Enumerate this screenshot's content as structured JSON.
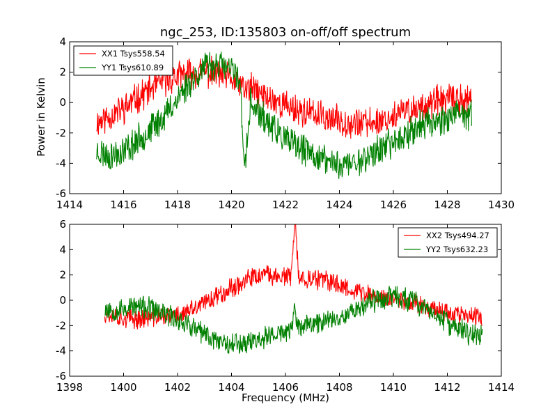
{
  "figure": {
    "title": "ngc_253, ID:135803 on-off/off spectrum",
    "ylabel": "Power in Kelvin",
    "xlabel": "Frequency (MHz)"
  },
  "chart_data": [
    {
      "type": "line",
      "title": "ngc_253, ID:135803 on-off/off spectrum",
      "xlabel": "",
      "ylabel": "Power in Kelvin",
      "xlim": [
        1414,
        1430
      ],
      "ylim": [
        -6,
        4
      ],
      "xticks": [
        1414,
        1416,
        1418,
        1420,
        1422,
        1424,
        1426,
        1428,
        1430
      ],
      "yticks": [
        -6,
        -4,
        -2,
        0,
        2,
        4
      ],
      "grid": false,
      "legend": "top-left",
      "x": [
        1415.0,
        1415.5,
        1416.0,
        1416.5,
        1417.0,
        1417.5,
        1418.0,
        1418.5,
        1419.0,
        1419.5,
        1420.0,
        1420.3,
        1420.5,
        1420.7,
        1421.0,
        1421.5,
        1422.0,
        1422.5,
        1423.0,
        1423.5,
        1424.0,
        1424.5,
        1425.0,
        1425.5,
        1426.0,
        1426.5,
        1427.0,
        1427.5,
        1428.0,
        1428.5,
        1428.9
      ],
      "series": [
        {
          "name": "XX1 Tsys558.54",
          "color": "#ff0000",
          "values": [
            -1.3,
            -0.9,
            -0.4,
            0.3,
            0.9,
            1.4,
            1.7,
            1.9,
            2.0,
            1.9,
            1.5,
            1.2,
            0.8,
            1.0,
            0.6,
            0.2,
            -0.2,
            -0.5,
            -0.8,
            -1.0,
            -1.2,
            -1.3,
            -1.4,
            -1.2,
            -0.9,
            -0.6,
            -0.3,
            0.0,
            0.2,
            0.2,
            0.1
          ],
          "noise": 0.9,
          "seed": 11
        },
        {
          "name": "YY1 Tsys610.89",
          "color": "#008000",
          "values": [
            -3.2,
            -3.5,
            -3.2,
            -2.5,
            -1.8,
            -0.9,
            0.3,
            1.5,
            2.3,
            2.5,
            2.1,
            1.7,
            -4.5,
            0.0,
            -0.7,
            -1.6,
            -2.5,
            -3.0,
            -3.4,
            -3.8,
            -4.1,
            -4.0,
            -3.6,
            -3.1,
            -2.6,
            -2.0,
            -1.5,
            -1.2,
            -1.0,
            -0.9,
            -0.8
          ],
          "noise": 0.9,
          "seed": 23
        }
      ]
    },
    {
      "type": "line",
      "title": "",
      "xlabel": "Frequency (MHz)",
      "ylabel": "",
      "xlim": [
        1398,
        1414
      ],
      "ylim": [
        -6,
        6
      ],
      "xticks": [
        1398,
        1400,
        1402,
        1404,
        1406,
        1408,
        1410,
        1412,
        1414
      ],
      "yticks": [
        -6,
        -4,
        -2,
        0,
        2,
        4,
        6
      ],
      "grid": false,
      "legend": "top-right",
      "x": [
        1399.3,
        1399.8,
        1400.3,
        1400.8,
        1401.3,
        1401.8,
        1402.3,
        1402.8,
        1403.3,
        1403.8,
        1404.3,
        1404.8,
        1405.3,
        1405.8,
        1406.2,
        1406.35,
        1406.5,
        1406.8,
        1407.3,
        1407.8,
        1408.3,
        1408.8,
        1409.3,
        1409.8,
        1410.3,
        1410.8,
        1411.3,
        1411.8,
        1412.3,
        1412.8,
        1413.3
      ],
      "series": [
        {
          "name": "XX2 Tsys494.27",
          "color": "#ff0000",
          "values": [
            -1.0,
            -1.3,
            -1.5,
            -1.4,
            -1.3,
            -1.2,
            -1.0,
            -0.5,
            0.2,
            0.8,
            1.3,
            1.8,
            2.0,
            1.9,
            1.8,
            6.0,
            1.8,
            1.7,
            1.6,
            1.4,
            1.0,
            0.6,
            0.3,
            0.1,
            0.0,
            -0.2,
            -0.5,
            -0.8,
            -1.1,
            -1.3,
            -1.4
          ],
          "noise": 0.7,
          "seed": 37
        },
        {
          "name": "YY2 Tsys632.23",
          "color": "#008000",
          "values": [
            -0.6,
            -0.8,
            -0.5,
            -0.6,
            -0.9,
            -1.3,
            -1.8,
            -2.5,
            -3.0,
            -3.3,
            -3.4,
            -3.2,
            -2.9,
            -2.6,
            -2.4,
            -0.8,
            -2.2,
            -2.0,
            -1.7,
            -1.4,
            -1.0,
            -0.5,
            0.0,
            0.3,
            0.2,
            -0.2,
            -0.8,
            -1.5,
            -2.2,
            -2.6,
            -2.8
          ],
          "noise": 0.8,
          "seed": 53
        }
      ]
    }
  ]
}
